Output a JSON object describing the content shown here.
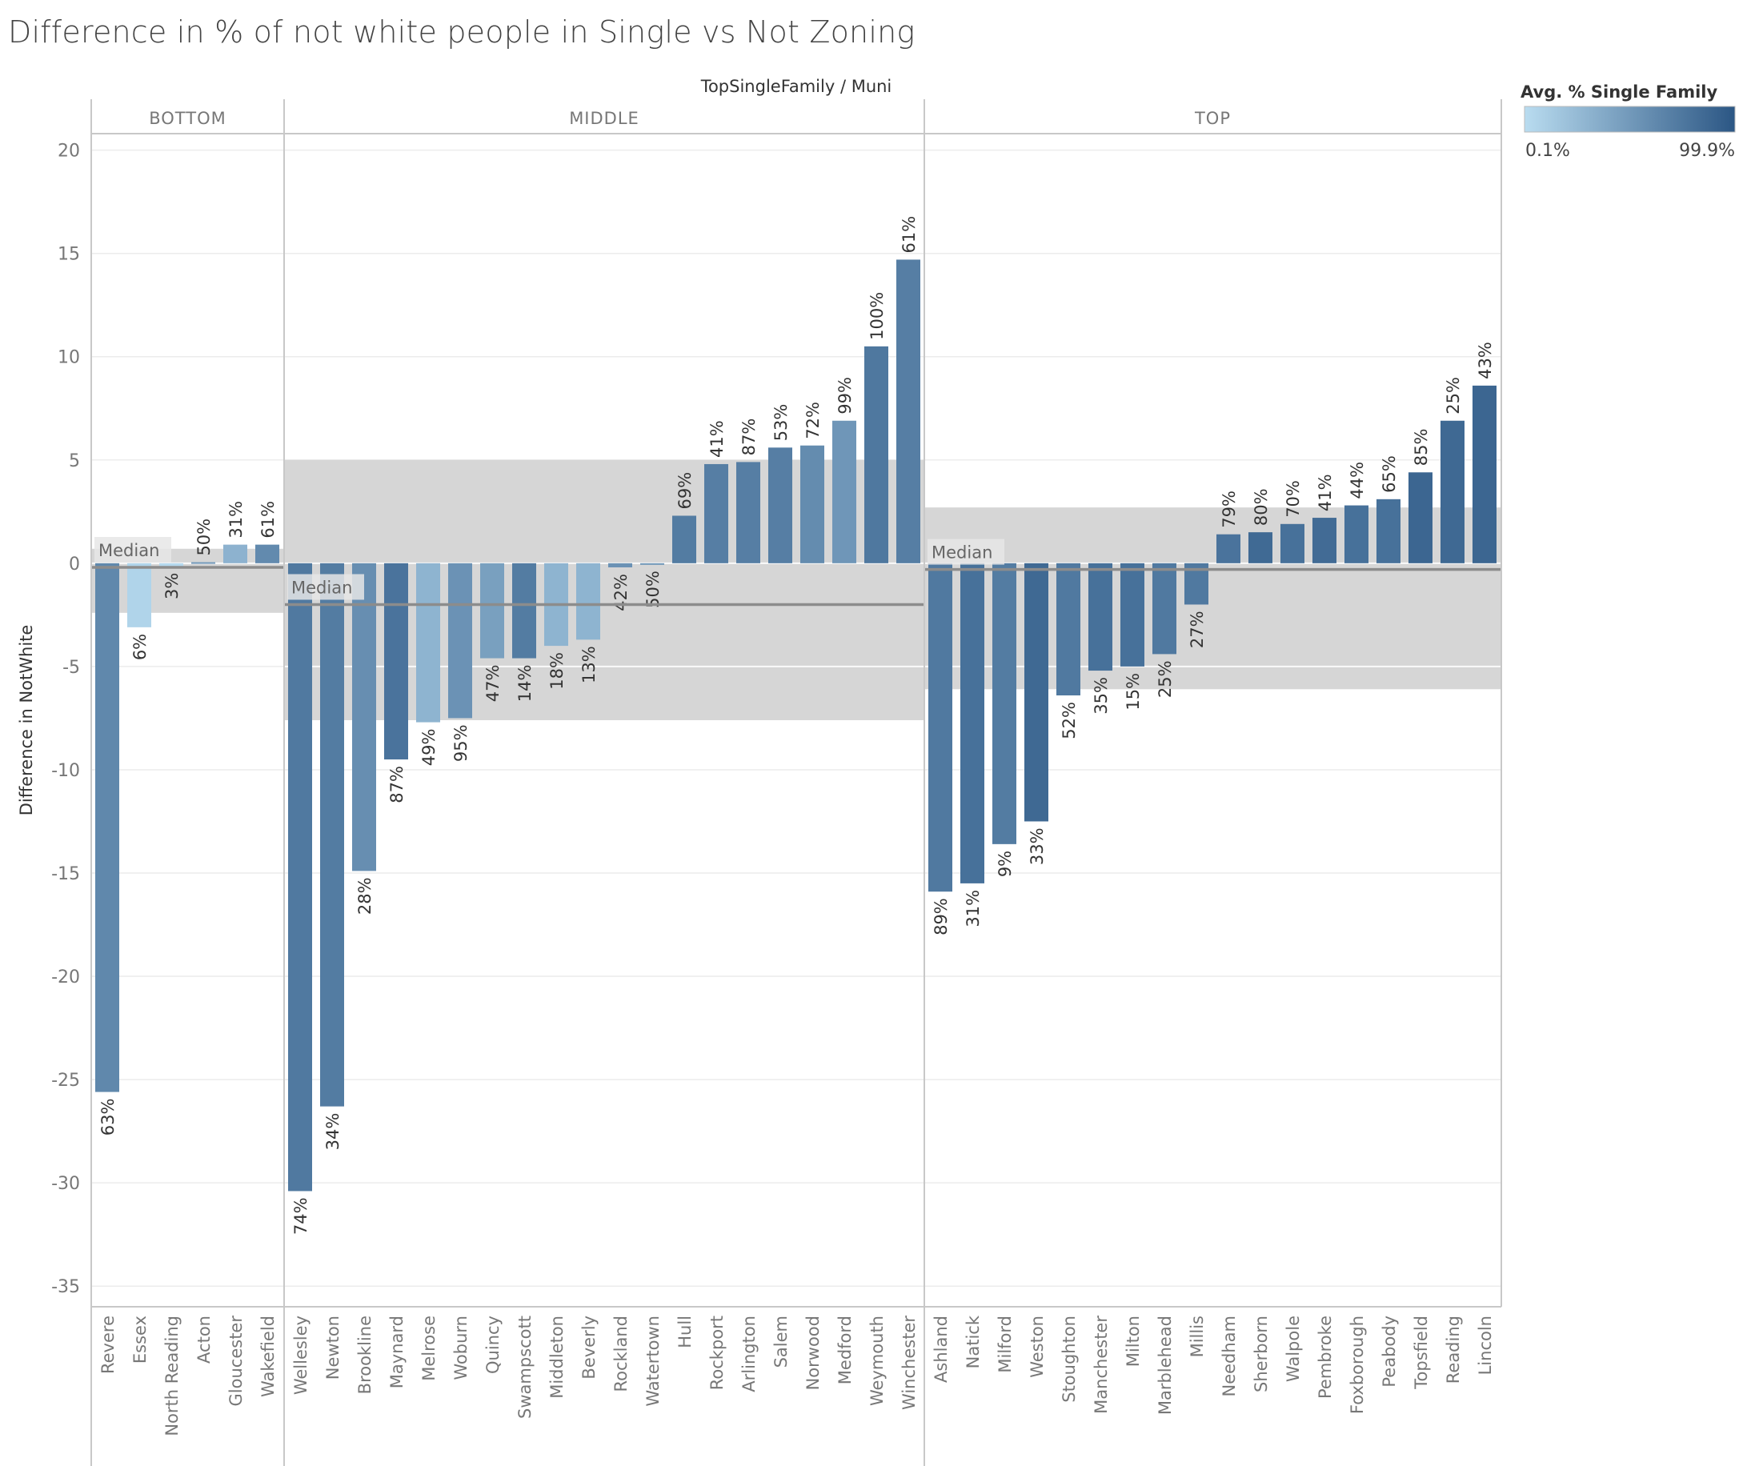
{
  "title": "Difference in % of not white people in Single  vs Not Zoning",
  "header": "TopSingleFamily  /  Muni",
  "legend": {
    "title": "Avg. % Single Family",
    "min_label": "0.1%",
    "max_label": "99.9%",
    "color_low": "#b9dcf0",
    "color_high": "#2b5684"
  },
  "chart_data": {
    "type": "bar",
    "ylabel": "Difference in NotWhite",
    "xlabel": "",
    "ylim": [
      -36,
      20.8
    ],
    "yticks": [
      20,
      15,
      10,
      5,
      0,
      -5,
      -10,
      -15,
      -20,
      -25,
      -30,
      -35
    ],
    "grid": true,
    "legend_position": "top-right",
    "reference_label": "Median",
    "panels": [
      {
        "name": "BOTTOM",
        "median": -0.2,
        "band": [
          -2.4,
          0.7
        ],
        "categories": [
          "Revere",
          "Essex",
          "North Reading",
          "Acton",
          "Gloucester",
          "Wakefield"
        ],
        "values": [
          -25.6,
          -3.1,
          -0.15,
          0.05,
          0.9,
          0.9
        ],
        "labels": [
          "63%",
          "6%",
          "3%",
          "50%",
          "31%",
          "61%"
        ],
        "shade": [
          0.63,
          0.06,
          0.03,
          0.5,
          0.31,
          0.61
        ]
      },
      {
        "name": "MIDDLE",
        "median": -2.0,
        "band": [
          -7.6,
          5.0
        ],
        "categories": [
          "Wellesley",
          "Newton",
          "Brookline",
          "Maynard",
          "Melrose",
          "Woburn",
          "Quincy",
          "Swampscott",
          "Middleton",
          "Beverly",
          "Rockland",
          "Watertown",
          "Hull",
          "Rockport",
          "Arlington",
          "Salem",
          "Norwood",
          "Medford",
          "Weymouth",
          "Winchester"
        ],
        "values": [
          -30.4,
          -26.3,
          -14.9,
          -9.5,
          -7.7,
          -7.5,
          -4.6,
          -4.6,
          -4.0,
          -3.7,
          -0.2,
          -0.05,
          2.3,
          4.8,
          4.9,
          5.6,
          5.7,
          6.9,
          10.5,
          14.7
        ],
        "labels": [
          "74%",
          "34%",
          "28%",
          "87%",
          "49%",
          "95%",
          "47%",
          "14%",
          "18%",
          "13%",
          "42%",
          "50%",
          "69%",
          "41%",
          "87%",
          "53%",
          "72%",
          "99%",
          "100%",
          "61%"
        ],
        "shade": [
          0.74,
          0.72,
          0.58,
          0.78,
          0.3,
          0.55,
          0.45,
          0.72,
          0.3,
          0.3,
          0.55,
          0.5,
          0.72,
          0.7,
          0.7,
          0.7,
          0.6,
          0.52,
          0.75,
          0.7
        ]
      },
      {
        "name": "TOP",
        "median": -0.3,
        "band": [
          -6.1,
          2.7
        ],
        "categories": [
          "Ashland",
          "Natick",
          "Milford",
          "Weston",
          "Stoughton",
          "Manchester",
          "Milton",
          "Marblehead",
          "Millis",
          "Needham",
          "Sherborn",
          "Walpole",
          "Pembroke",
          "Foxborough",
          "Peabody",
          "Topsfield",
          "Reading",
          "Lincoln"
        ],
        "values": [
          -15.9,
          -15.5,
          -13.6,
          -12.5,
          -6.4,
          -5.2,
          -5.0,
          -4.4,
          -2.0,
          1.4,
          1.5,
          1.9,
          2.2,
          2.8,
          3.1,
          4.4,
          6.9,
          8.6
        ],
        "labels": [
          "89%",
          "31%",
          "9%",
          "33%",
          "52%",
          "35%",
          "15%",
          "25%",
          "27%",
          "79%",
          "80%",
          "70%",
          "41%",
          "44%",
          "65%",
          "85%",
          "25%",
          "43%"
        ],
        "shade": [
          0.74,
          0.8,
          0.72,
          0.86,
          0.74,
          0.8,
          0.8,
          0.74,
          0.74,
          0.78,
          0.85,
          0.8,
          0.84,
          0.8,
          0.8,
          0.88,
          0.86,
          0.88
        ]
      }
    ]
  }
}
